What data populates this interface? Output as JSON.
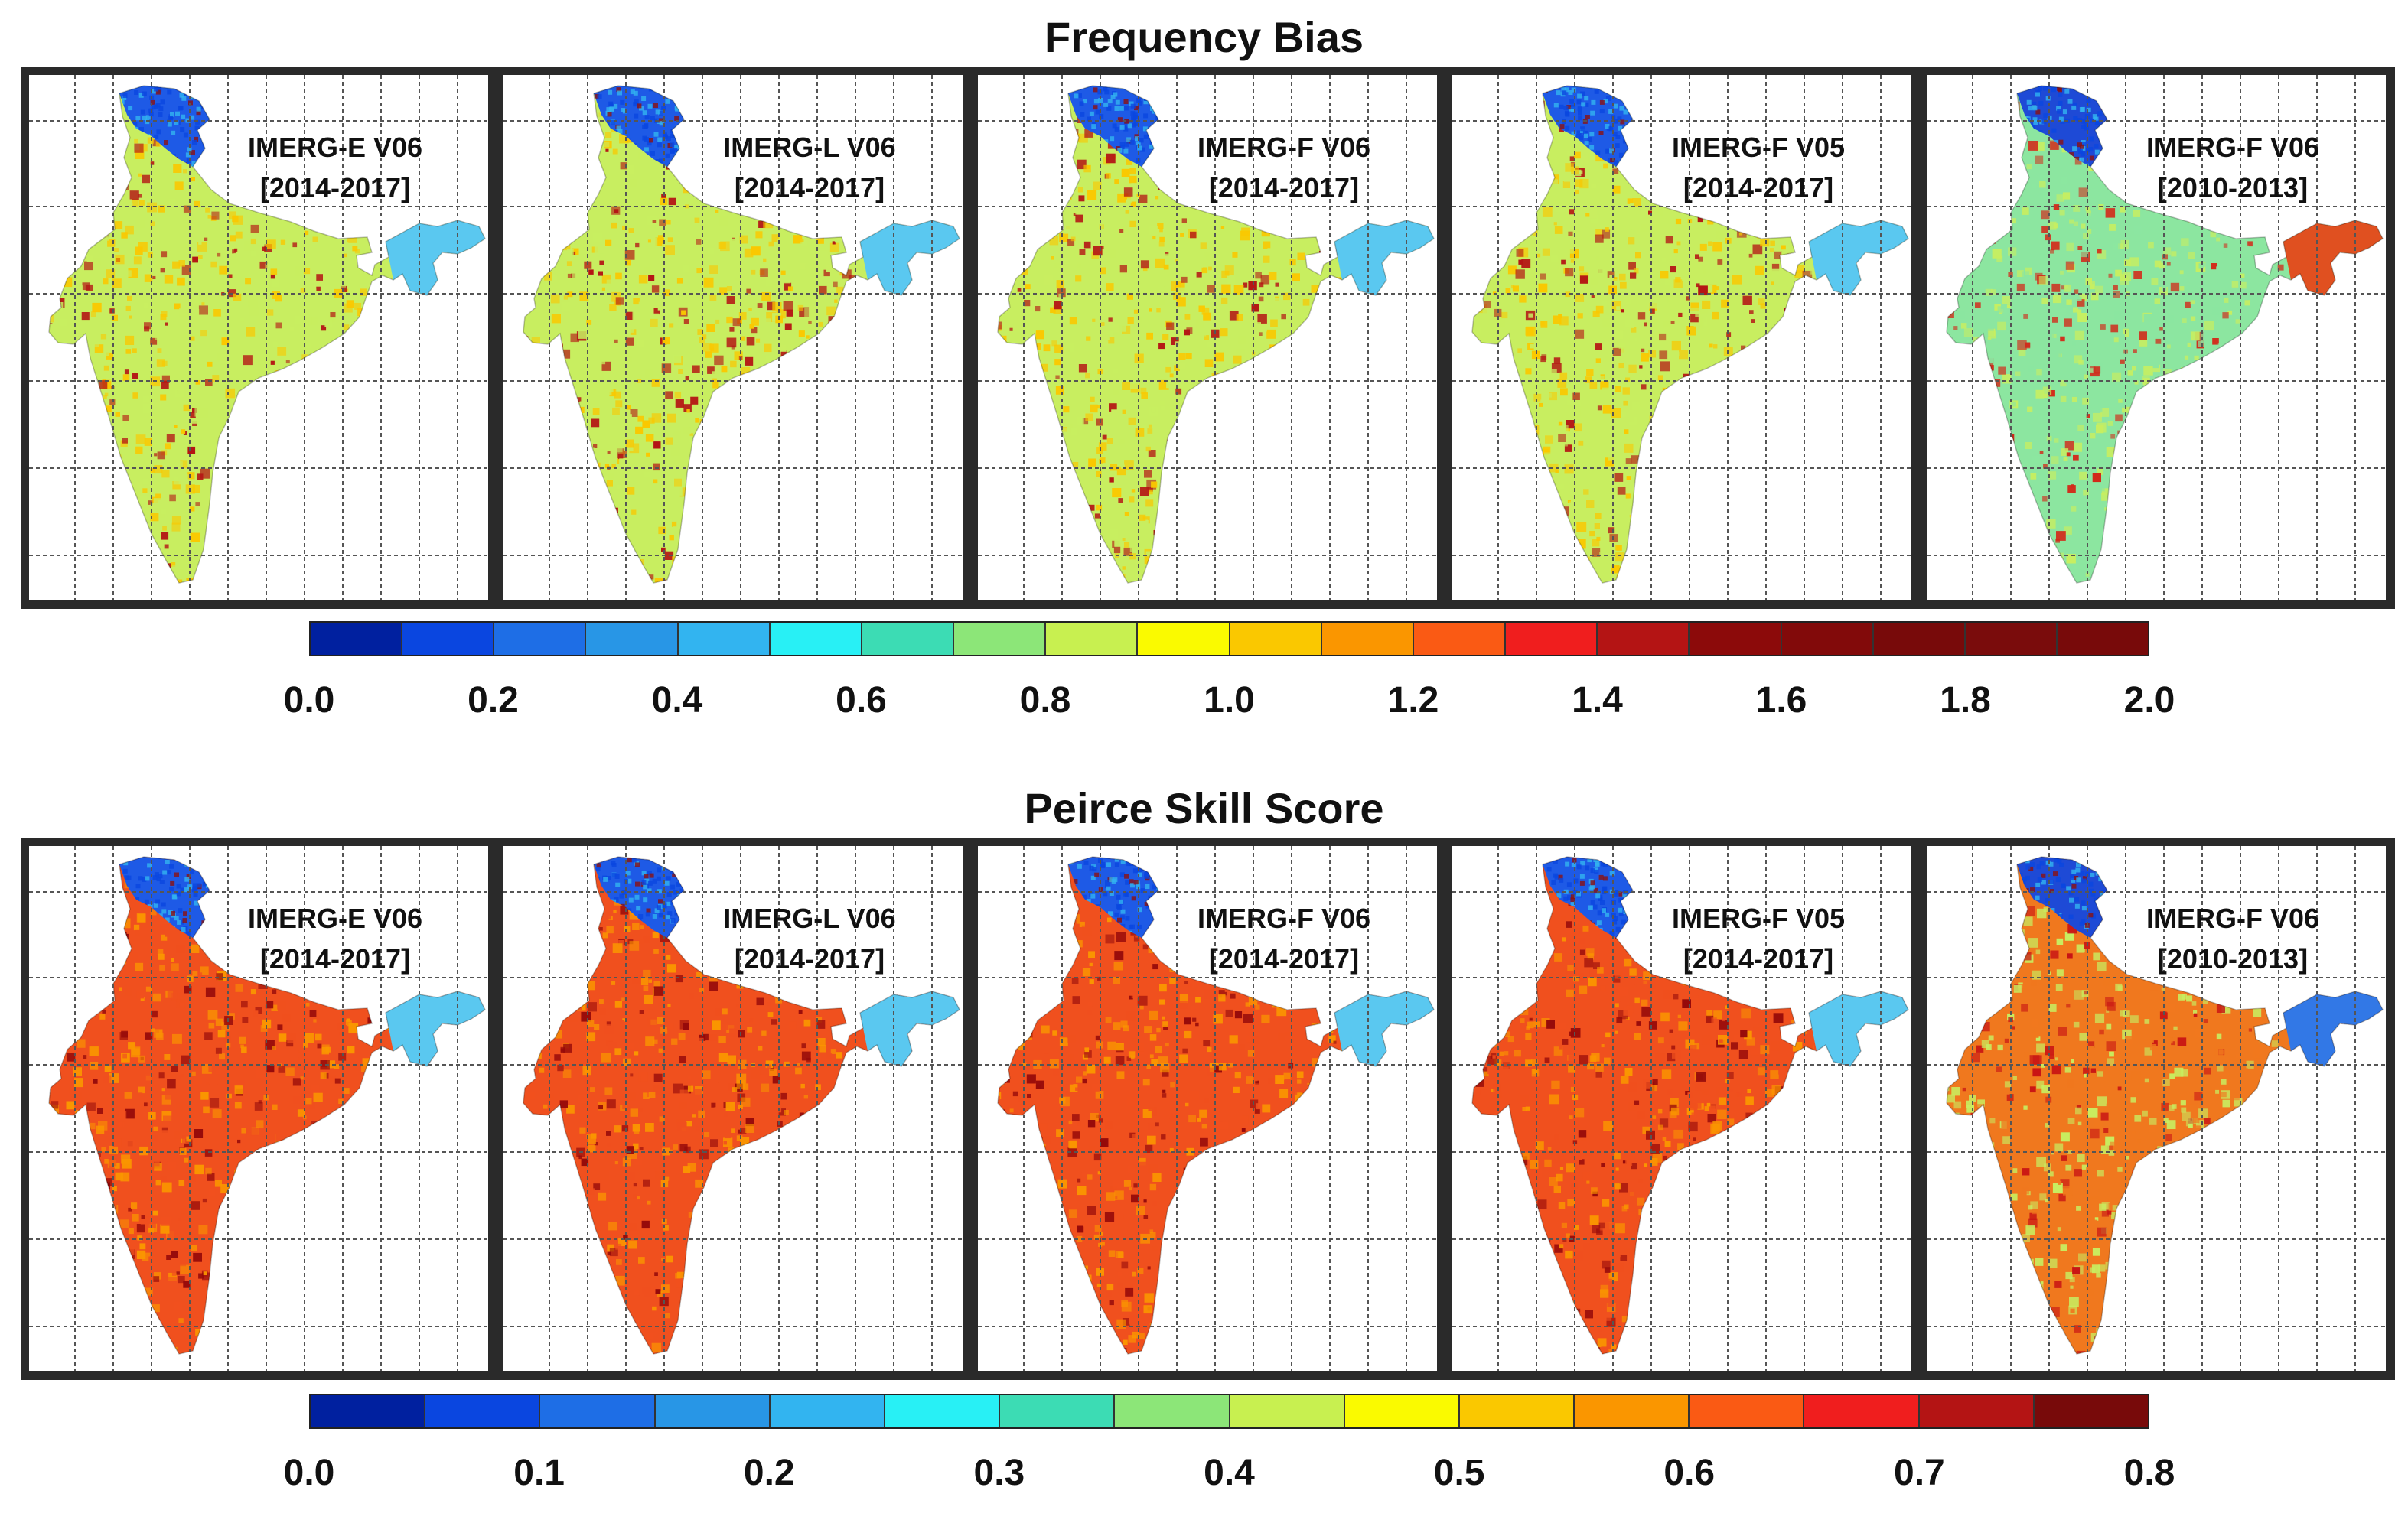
{
  "figures": [
    {
      "title": "Frequency Bias",
      "panels": [
        {
          "product": "IMERG-E V06",
          "period": "[2014-2017]",
          "scheme": "fb"
        },
        {
          "product": "IMERG-L V06",
          "period": "[2014-2017]",
          "scheme": "fb"
        },
        {
          "product": "IMERG-F V06",
          "period": "[2014-2017]",
          "scheme": "fb"
        },
        {
          "product": "IMERG-F V05",
          "period": "[2014-2017]",
          "scheme": "fb"
        },
        {
          "product": "IMERG-F V06",
          "period": "[2010-2013]",
          "scheme": "fb2"
        }
      ],
      "colorbar": {
        "ticks": [
          "0.0",
          "0.2",
          "0.4",
          "0.6",
          "0.8",
          "1.0",
          "1.2",
          "1.4",
          "1.6",
          "1.8",
          "2.0"
        ],
        "range": [
          0.0,
          2.0
        ],
        "colors": [
          "#00209f",
          "#0a46e0",
          "#1e6ee6",
          "#2896e6",
          "#32b4f0",
          "#28f0f5",
          "#3cdcb4",
          "#8ce678",
          "#c8f050",
          "#fafa00",
          "#fac800",
          "#fa9600",
          "#fa5a14",
          "#f01e1e",
          "#b41414",
          "#8c0a0a",
          "#820a0a",
          "#780a0a",
          "#7a0c0c",
          "#780a0a"
        ]
      }
    },
    {
      "title": "Peirce Skill Score",
      "panels": [
        {
          "product": "IMERG-E V06",
          "period": "[2014-2017]",
          "scheme": "pss"
        },
        {
          "product": "IMERG-L V06",
          "period": "[2014-2017]",
          "scheme": "pss"
        },
        {
          "product": "IMERG-F V06",
          "period": "[2014-2017]",
          "scheme": "pss"
        },
        {
          "product": "IMERG-F V05",
          "period": "[2014-2017]",
          "scheme": "pss"
        },
        {
          "product": "IMERG-F V06",
          "period": "[2010-2013]",
          "scheme": "pss2"
        }
      ],
      "colorbar": {
        "ticks": [
          "0.0",
          "0.1",
          "0.2",
          "0.3",
          "0.4",
          "0.5",
          "0.6",
          "0.7",
          "0.8"
        ],
        "range": [
          0.0,
          0.8
        ],
        "colors": [
          "#00209f",
          "#0a46e0",
          "#1e6ee6",
          "#2896e6",
          "#32b4f0",
          "#28f0f5",
          "#3cdcb4",
          "#8ce678",
          "#c8f050",
          "#fafa00",
          "#fac800",
          "#fa9600",
          "#fa5a14",
          "#f01e1e",
          "#b41414",
          "#780a0a"
        ]
      }
    }
  ],
  "map_styles": {
    "fb": {
      "fill": "#c8ee60",
      "north": "#1e5ae6",
      "ne": "#5ac8f0",
      "hot": "#b41414",
      "mid": "#fac800"
    },
    "fb2": {
      "fill": "#8ce6a0",
      "north": "#1e4ad6",
      "ne": "#e05020",
      "hot": "#d22a1a",
      "mid": "#c8ee60"
    },
    "pss": {
      "fill": "#f0501e",
      "north": "#1e5ae6",
      "ne": "#5ac8f0",
      "hot": "#960a0a",
      "mid": "#fa9600"
    },
    "pss2": {
      "fill": "#f0781e",
      "north": "#1e4ad6",
      "ne": "#3278e6",
      "hot": "#c81414",
      "mid": "#c8ee60"
    }
  }
}
